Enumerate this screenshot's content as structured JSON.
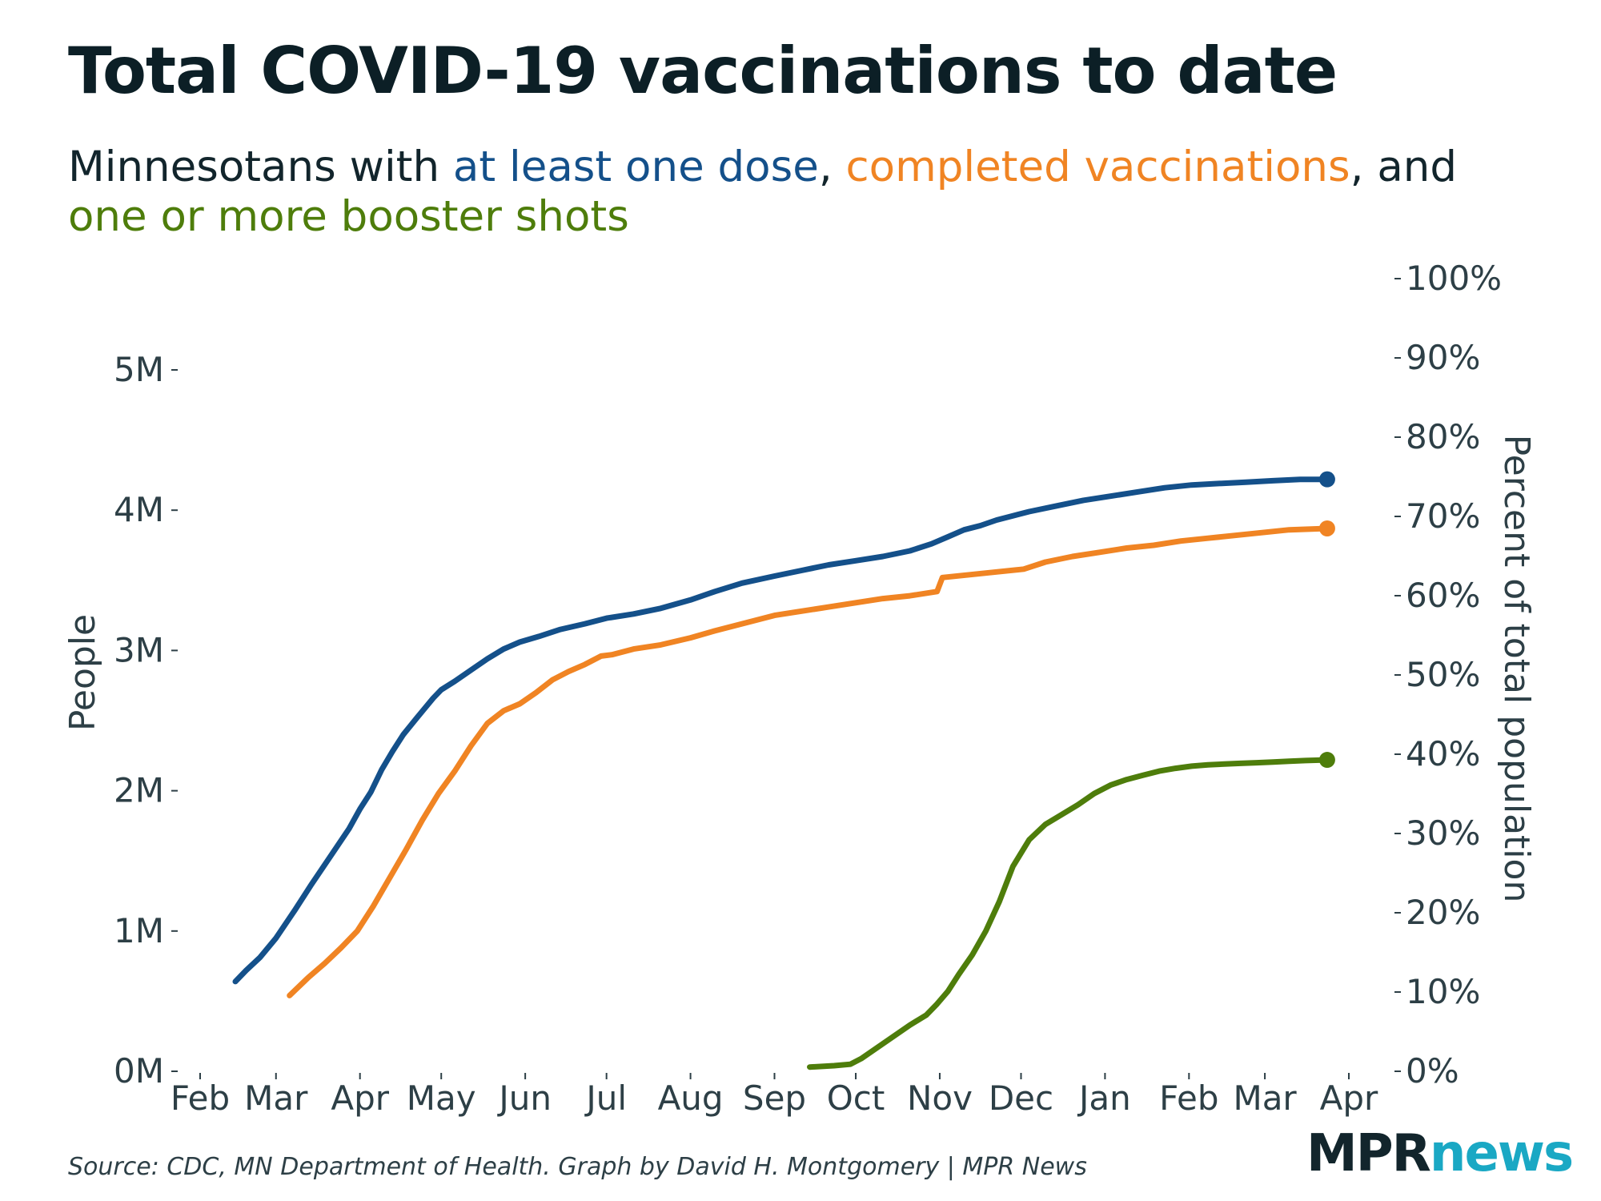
{
  "title": "Total COVID-19 vaccinations to date",
  "subtitle": {
    "prefix": "Minnesotans with ",
    "series1": "at least one dose",
    "sep1": ", ",
    "series2": "completed vaccinations",
    "sep2": ", and",
    "series3": "one or more booster shots"
  },
  "source": "Source: CDC, MN Department of Health. Graph by David H. Montgomery | MPR News",
  "logo": {
    "part1": "MPR",
    "part2": "news"
  },
  "colors": {
    "one_dose": "#14508a",
    "completed": "#f08423",
    "booster": "#4e7d0b",
    "axis_text": "#2d3f46",
    "logo_accent": "#1aa8c4"
  },
  "chart_data": {
    "type": "line",
    "title": "Total COVID-19 vaccinations to date",
    "xlabel": "",
    "ylabel": "People",
    "y2label": "Percent of total population",
    "x_ticks": [
      "Feb",
      "Mar",
      "Apr",
      "May",
      "Jun",
      "Jul",
      "Aug",
      "Sep",
      "Oct",
      "Nov",
      "Dec",
      "Jan",
      "Feb",
      "Mar",
      "Apr"
    ],
    "x_tick_values": [
      0,
      28,
      59,
      89,
      120,
      150,
      181,
      212,
      242,
      273,
      303,
      334,
      365,
      393,
      424
    ],
    "x_start": "2021-02-01",
    "x_unit": "days since Feb 1, 2021",
    "xlim": [
      0,
      424
    ],
    "y_ticks": [
      "0M",
      "1M",
      "2M",
      "3M",
      "4M",
      "5M"
    ],
    "y_tick_values": [
      0,
      1000000,
      2000000,
      3000000,
      4000000,
      5000000
    ],
    "ylim": [
      0,
      5000000
    ],
    "y2_ticks": [
      "0%",
      "10%",
      "20%",
      "30%",
      "40%",
      "50%",
      "60%",
      "70%",
      "80%",
      "90%",
      "100%"
    ],
    "y2_tick_values": [
      0,
      10,
      20,
      30,
      40,
      50,
      60,
      70,
      80,
      90,
      100
    ],
    "y2lim": [
      0,
      100
    ],
    "series": [
      {
        "name": "at least one dose",
        "color": "#14508a",
        "x": [
          13,
          17,
          22,
          28,
          35,
          41,
          48,
          55,
          59,
          63,
          67,
          71,
          75,
          80,
          86,
          89,
          94,
          100,
          106,
          112,
          118,
          125,
          133,
          142,
          150,
          160,
          170,
          181,
          190,
          200,
          212,
          222,
          232,
          242,
          252,
          262,
          270,
          276,
          282,
          288,
          294,
          300,
          306,
          316,
          326,
          336,
          346,
          356,
          366,
          376,
          386,
          396,
          406,
          416
        ],
        "y": [
          640000,
          720000,
          810000,
          950000,
          1150000,
          1330000,
          1530000,
          1730000,
          1870000,
          1990000,
          2150000,
          2280000,
          2400000,
          2520000,
          2660000,
          2720000,
          2780000,
          2860000,
          2940000,
          3010000,
          3060000,
          3100000,
          3150000,
          3190000,
          3230000,
          3260000,
          3300000,
          3360000,
          3420000,
          3480000,
          3530000,
          3570000,
          3610000,
          3640000,
          3670000,
          3710000,
          3760000,
          3810000,
          3860000,
          3890000,
          3930000,
          3960000,
          3990000,
          4030000,
          4070000,
          4100000,
          4130000,
          4160000,
          4180000,
          4190000,
          4200000,
          4210000,
          4220000,
          4220000
        ]
      },
      {
        "name": "completed vaccinations",
        "color": "#f08423",
        "x": [
          33,
          40,
          46,
          52,
          58,
          64,
          70,
          76,
          82,
          88,
          94,
          100,
          106,
          112,
          118,
          124,
          130,
          136,
          142,
          148,
          152,
          160,
          170,
          181,
          190,
          200,
          212,
          222,
          232,
          242,
          252,
          262,
          272,
          274,
          284,
          294,
          304,
          312,
          322,
          332,
          342,
          352,
          362,
          372,
          382,
          392,
          402,
          416
        ],
        "y": [
          540000,
          670000,
          770000,
          880000,
          1000000,
          1180000,
          1380000,
          1580000,
          1790000,
          1980000,
          2140000,
          2320000,
          2480000,
          2570000,
          2620000,
          2700000,
          2790000,
          2850000,
          2900000,
          2960000,
          2970000,
          3010000,
          3040000,
          3090000,
          3140000,
          3190000,
          3250000,
          3280000,
          3310000,
          3340000,
          3370000,
          3390000,
          3420000,
          3520000,
          3540000,
          3560000,
          3580000,
          3630000,
          3670000,
          3700000,
          3730000,
          3750000,
          3780000,
          3800000,
          3820000,
          3840000,
          3860000,
          3870000
        ]
      },
      {
        "name": "one or more booster shots",
        "color": "#4e7d0b",
        "x": [
          225,
          234,
          240,
          244,
          250,
          256,
          262,
          268,
          272,
          276,
          280,
          285,
          290,
          295,
          300,
          306,
          312,
          318,
          324,
          330,
          336,
          342,
          348,
          354,
          360,
          366,
          372,
          378,
          384,
          390,
          396,
          402,
          408,
          416
        ],
        "y": [
          30000,
          40000,
          50000,
          90000,
          170000,
          250000,
          330000,
          400000,
          480000,
          570000,
          690000,
          830000,
          1000000,
          1210000,
          1460000,
          1650000,
          1760000,
          1830000,
          1900000,
          1980000,
          2040000,
          2080000,
          2110000,
          2140000,
          2160000,
          2175000,
          2185000,
          2190000,
          2195000,
          2200000,
          2205000,
          2210000,
          2215000,
          2220000
        ]
      }
    ]
  }
}
